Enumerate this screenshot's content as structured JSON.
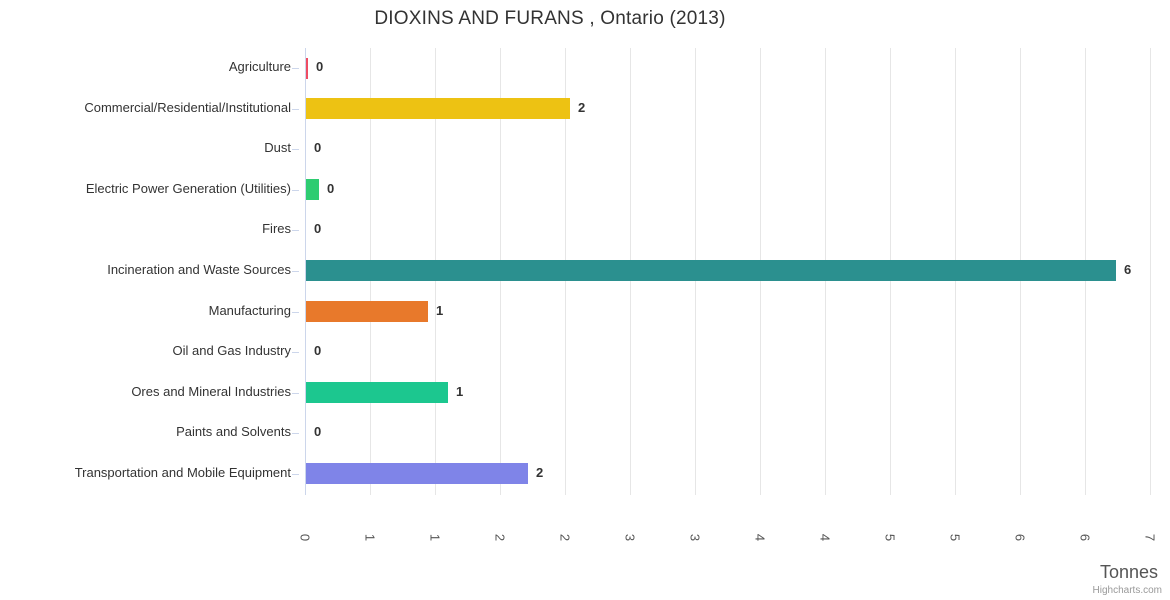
{
  "chart_data": {
    "type": "bar",
    "orientation": "horizontal",
    "title": "DIOXINS AND FURANS , Ontario (2013)",
    "categories": [
      "Agriculture",
      "Commercial/Residential/Institutional",
      "Dust",
      "Electric Power Generation (Utilities)",
      "Fires",
      "Incineration and Waste Sources",
      "Manufacturing",
      "Oil and Gas Industry",
      "Ores and Mineral Industries",
      "Paints and Solvents",
      "Transportation and Mobile Equipment"
    ],
    "values": [
      0.015,
      2.03,
      0,
      0.1,
      0,
      6.23,
      0.94,
      0,
      1.09,
      0,
      1.71
    ],
    "value_labels": [
      "0",
      "2",
      "0",
      "0",
      "0",
      "6",
      "1",
      "0",
      "1",
      "0",
      "2"
    ],
    "bar_colors": [
      "#ee4c63",
      "#edc213",
      null,
      "#2ecc71",
      null,
      "#2b908f",
      "#e8792b",
      null,
      "#1cc78f",
      null,
      "#7f84e8"
    ],
    "xlabel": "Tonnes",
    "ylabel": "",
    "xlim": [
      0,
      6.6
    ],
    "tick_interval": 0.5,
    "x_tick_values": [
      0,
      0.5,
      1,
      1.5,
      2,
      2.5,
      3,
      3.5,
      4,
      4.5,
      5,
      5.5,
      6,
      6.5
    ],
    "x_tick_labels": [
      "0",
      "1",
      "1",
      "2",
      "2",
      "3",
      "3",
      "4",
      "4",
      "5",
      "5",
      "6",
      "6",
      "7"
    ],
    "grid": true,
    "legend": false,
    "colors": {
      "grid": "#e6e6e6",
      "axis_line": "#ccd6eb",
      "tick": "#ccd6eb",
      "text": "#333333",
      "x_label_text": "#555555",
      "axis_title": "#555555",
      "credit": "#999999"
    }
  },
  "credits": {
    "label": "Highcharts.com"
  }
}
